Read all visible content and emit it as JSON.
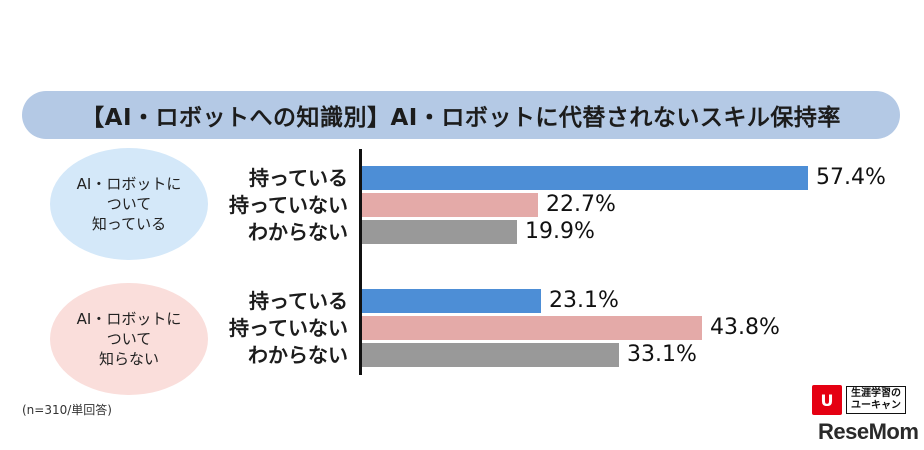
{
  "chart_data": {
    "type": "bar",
    "orientation": "horizontal",
    "title": "【AI・ロボットへの知識別】AI・ロボットに代替されないスキル保持率",
    "groups": [
      {
        "name_lines": [
          "AI・ロボットに",
          "ついて",
          "知っている"
        ],
        "items": [
          {
            "label": "持っている",
            "value": 57.4,
            "display": "57.4%"
          },
          {
            "label": "持っていない",
            "value": 22.7,
            "display": "22.7%"
          },
          {
            "label": "わからない",
            "value": 19.9,
            "display": "19.9%"
          }
        ]
      },
      {
        "name_lines": [
          "AI・ロボットに",
          "ついて",
          "知らない"
        ],
        "items": [
          {
            "label": "持っている",
            "value": 23.1,
            "display": "23.1%"
          },
          {
            "label": "持っていない",
            "value": 43.8,
            "display": "43.8%"
          },
          {
            "label": "わからない",
            "value": 33.1,
            "display": "33.1%"
          }
        ]
      }
    ],
    "colors": {
      "持っている": "#4d8ed6",
      "持っていない": "#e4aaa8",
      "わからない": "#999999"
    },
    "xlim": [
      0,
      60
    ],
    "grid": false,
    "legend": "none"
  },
  "note": "(n=310/単回答)",
  "logo": {
    "mark": "U",
    "text_lines": [
      "生涯学習の",
      "ユーキャン"
    ]
  },
  "watermark": "ReseMom"
}
